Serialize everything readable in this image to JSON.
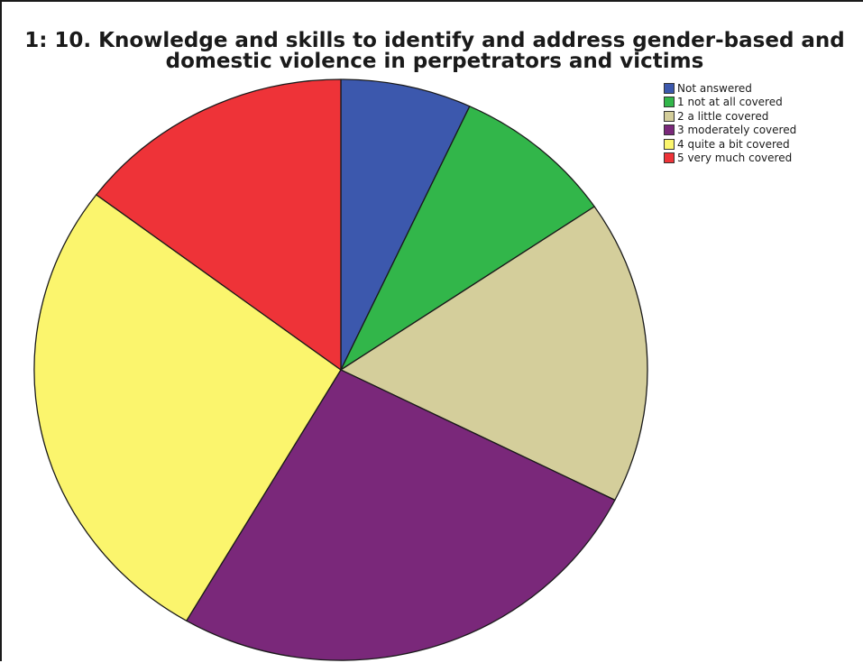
{
  "chart_data": {
    "type": "pie",
    "title_lines": [
      "1: 10. Knowledge and skills to identify and address gender-based and",
      "domestic violence in perpetrators and victims"
    ],
    "categories": [
      "Not answered",
      "1 not at all covered",
      "2 a little covered",
      "3 moderately covered",
      "4 quite a bit covered",
      "5 very much covered"
    ],
    "values": [
      6.9,
      8.6,
      16.9,
      26.0,
      26.9,
      14.7
    ],
    "unit": "%",
    "colors": [
      "#3c58ad",
      "#32b64a",
      "#d4ce9b",
      "#7a287a",
      "#fbf56d",
      "#ee3338"
    ],
    "start_angle_deg": 0,
    "direction": "clockwise",
    "legend": {
      "position": "top-right",
      "labels": [
        "Not answered",
        "1 not at all covered",
        "2 a little covered",
        "3 moderately covered",
        "4 quite a bit covered",
        "5 very much covered"
      ]
    }
  }
}
